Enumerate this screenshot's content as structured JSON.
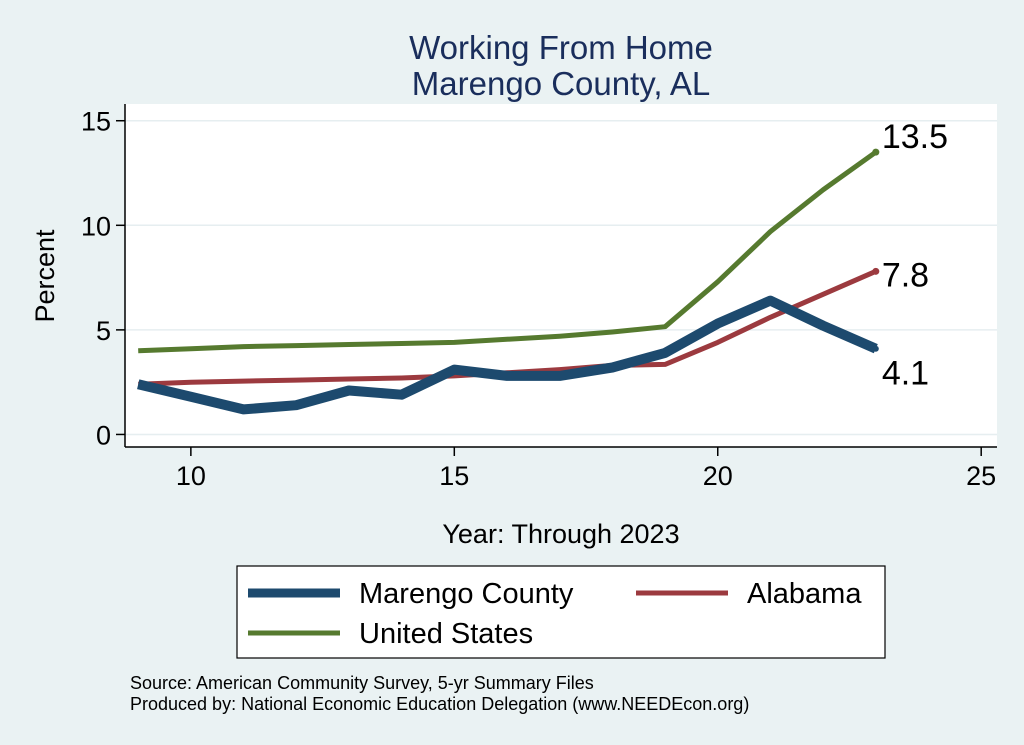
{
  "chart_data": {
    "type": "line",
    "title_lines": [
      "Working From Home",
      "Marengo County, AL"
    ],
    "xlabel": "Year: Through 2023",
    "ylabel": "Percent",
    "xlim": [
      8.75,
      25.3
    ],
    "ylim": [
      -0.6,
      15.8
    ],
    "xticks": [
      10,
      15,
      20,
      25
    ],
    "yticks": [
      0,
      5,
      10,
      15
    ],
    "series": [
      {
        "name": "Marengo County",
        "color": "#1d4a6e",
        "x": [
          9,
          10,
          11,
          12,
          13,
          14,
          15,
          16,
          17,
          18,
          19,
          20,
          21,
          22,
          23
        ],
        "values": [
          2.4,
          1.8,
          1.2,
          1.4,
          2.1,
          1.9,
          3.1,
          2.8,
          2.8,
          3.2,
          3.9,
          5.3,
          6.4,
          5.2,
          4.1
        ],
        "end_label": "4.1"
      },
      {
        "name": "Alabama",
        "color": "#9c3a3f",
        "x": [
          9,
          10,
          11,
          12,
          13,
          14,
          15,
          16,
          17,
          18,
          19,
          20,
          21,
          22,
          23
        ],
        "values": [
          2.4,
          2.5,
          2.55,
          2.6,
          2.65,
          2.7,
          2.8,
          2.95,
          3.1,
          3.3,
          3.35,
          4.4,
          5.6,
          6.7,
          7.8
        ],
        "end_label": "7.8"
      },
      {
        "name": "United States",
        "color": "#567a2f",
        "x": [
          9,
          10,
          11,
          12,
          13,
          14,
          15,
          16,
          17,
          18,
          19,
          20,
          21,
          22,
          23
        ],
        "values": [
          4.0,
          4.1,
          4.2,
          4.25,
          4.3,
          4.35,
          4.4,
          4.55,
          4.7,
          4.9,
          5.15,
          7.3,
          9.7,
          11.7,
          13.5
        ],
        "end_label": "13.5"
      }
    ]
  },
  "legend": {
    "items": [
      "Marengo County",
      "Alabama",
      "United States"
    ]
  },
  "source_lines": [
    "Source: American Community Survey, 5-yr Summary Files",
    "Produced by: National Economic Education Delegation (www.NEEDEcon.org)"
  ]
}
